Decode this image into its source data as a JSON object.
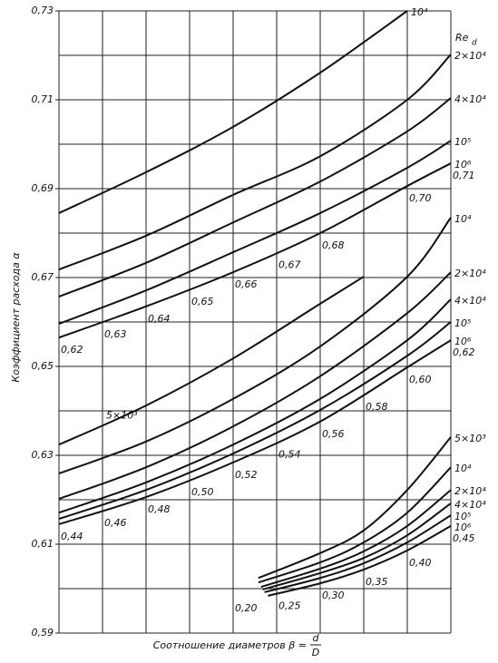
{
  "chart_data": {
    "type": "line",
    "y_label": "Коэффициент расхода α",
    "x_label": "Соотношение диаметров β =",
    "x_label_numerator": "d",
    "x_label_denominator": "D",
    "legend_title": "Re",
    "legend_title_sub": "d",
    "ylim": [
      0.59,
      0.73
    ],
    "yticks": [
      {
        "value": 0.73,
        "label": "0,73"
      },
      {
        "value": 0.71,
        "label": "0,71"
      },
      {
        "value": 0.69,
        "label": "0,69"
      },
      {
        "value": 0.67,
        "label": "0,67"
      },
      {
        "value": 0.65,
        "label": "0,65"
      },
      {
        "value": 0.63,
        "label": "0,63"
      },
      {
        "value": 0.61,
        "label": "0,61"
      },
      {
        "value": 0.59,
        "label": "0,59"
      }
    ],
    "minor_yticks": [
      0.72,
      0.7,
      0.68,
      0.66,
      0.64,
      0.62,
      0.6
    ],
    "grid": true,
    "color": "#111111",
    "groups": [
      {
        "xlim": [
          0.62,
          0.71
        ],
        "xticks": [
          {
            "value": 0.62,
            "label": "0,62"
          },
          {
            "value": 0.63,
            "label": "0,63"
          },
          {
            "value": 0.64,
            "label": "0,64"
          },
          {
            "value": 0.65,
            "label": "0,65"
          },
          {
            "value": 0.66,
            "label": "0,66"
          },
          {
            "value": 0.67,
            "label": "0,67"
          },
          {
            "value": 0.68,
            "label": "0,68"
          },
          {
            "value": 0.7,
            "label": "0,70"
          },
          {
            "value": 0.71,
            "label": "0,71"
          }
        ],
        "series": [
          {
            "name": "10⁴",
            "x": [
              0.62,
              0.64,
              0.66,
              0.68,
              0.7
            ],
            "values": [
              0.6845,
              0.6937,
              0.7039,
              0.7161,
              0.73
            ]
          },
          {
            "name": "2×10⁴",
            "x": [
              0.62,
              0.64,
              0.66,
              0.68,
              0.7,
              0.71
            ],
            "values": [
              0.6718,
              0.6794,
              0.6886,
              0.6973,
              0.71,
              0.7202
            ]
          },
          {
            "name": "4×10⁴",
            "x": [
              0.62,
              0.64,
              0.66,
              0.68,
              0.7,
              0.71
            ],
            "values": [
              0.6657,
              0.6733,
              0.6824,
              0.6916,
              0.7029,
              0.7104
            ]
          },
          {
            "name": "10⁵",
            "x": [
              0.62,
              0.64,
              0.66,
              0.68,
              0.7,
              0.71
            ],
            "values": [
              0.6596,
              0.6671,
              0.6757,
              0.6845,
              0.6947,
              0.7008
            ]
          },
          {
            "name": "10⁶",
            "x": [
              0.62,
              0.64,
              0.66,
              0.68,
              0.7,
              0.71
            ],
            "values": [
              0.6565,
              0.6635,
              0.6712,
              0.68,
              0.6906,
              0.6957
            ]
          }
        ]
      },
      {
        "xlim": [
          0.44,
          0.62
        ],
        "xticks": [
          {
            "value": 0.44,
            "label": "0,44"
          },
          {
            "value": 0.46,
            "label": "0,46"
          },
          {
            "value": 0.48,
            "label": "0,48"
          },
          {
            "value": 0.5,
            "label": "0,50"
          },
          {
            "value": 0.52,
            "label": "0,52"
          },
          {
            "value": 0.54,
            "label": "0,54"
          },
          {
            "value": 0.56,
            "label": "0,56"
          },
          {
            "value": 0.58,
            "label": "0,58"
          },
          {
            "value": 0.6,
            "label": "0,60"
          },
          {
            "value": 0.62,
            "label": "0,62"
          }
        ],
        "series": [
          {
            "name": "5×10³",
            "label_position": "start",
            "x": [
              0.44,
              0.48,
              0.52,
              0.56,
              0.58
            ],
            "values": [
              0.6324,
              0.6412,
              0.6518,
              0.6641,
              0.6702
            ]
          },
          {
            "name": "10⁴",
            "x": [
              0.44,
              0.48,
              0.52,
              0.56,
              0.6,
              0.62
            ],
            "values": [
              0.6259,
              0.6331,
              0.6427,
              0.6545,
              0.6702,
              0.6835
            ]
          },
          {
            "name": "2×10⁴",
            "x": [
              0.44,
              0.48,
              0.52,
              0.56,
              0.6,
              0.62
            ],
            "values": [
              0.6202,
              0.6273,
              0.6365,
              0.6478,
              0.662,
              0.6712
            ]
          },
          {
            "name": "4×10⁴",
            "x": [
              0.44,
              0.48,
              0.52,
              0.56,
              0.6,
              0.62
            ],
            "values": [
              0.6171,
              0.6239,
              0.6324,
              0.6427,
              0.6559,
              0.6651
            ]
          },
          {
            "name": "10⁵",
            "x": [
              0.44,
              0.48,
              0.52,
              0.56,
              0.6,
              0.62
            ],
            "values": [
              0.6157,
              0.6222,
              0.6304,
              0.6402,
              0.6524,
              0.66
            ]
          },
          {
            "name": "10⁶",
            "x": [
              0.44,
              0.48,
              0.52,
              0.56,
              0.6,
              0.62
            ],
            "values": [
              0.6145,
              0.6206,
              0.6284,
              0.6376,
              0.6498,
              0.6559
            ]
          }
        ]
      },
      {
        "xlim": [
          0.0,
          0.45
        ],
        "xticks": [
          {
            "value": 0.2,
            "label": "0,20"
          },
          {
            "value": 0.25,
            "label": "0,25"
          },
          {
            "value": 0.3,
            "label": "0,30"
          },
          {
            "value": 0.35,
            "label": "0,35"
          },
          {
            "value": 0.4,
            "label": "0,40"
          },
          {
            "value": 0.45,
            "label": "0,45"
          }
        ],
        "series": [
          {
            "name": "5×10³",
            "x": [
              0.229,
              0.3,
              0.35,
              0.4,
              0.45
            ],
            "values": [
              0.6024,
              0.608,
              0.6131,
              0.6222,
              0.6341
            ]
          },
          {
            "name": "10⁴",
            "x": [
              0.229,
              0.3,
              0.35,
              0.4,
              0.45
            ],
            "values": [
              0.6014,
              0.6059,
              0.6104,
              0.6171,
              0.6273
            ]
          },
          {
            "name": "2×10⁴",
            "x": [
              0.232,
              0.3,
              0.35,
              0.4,
              0.45
            ],
            "values": [
              0.6004,
              0.6045,
              0.6084,
              0.6141,
              0.6222
            ]
          },
          {
            "name": "4×10⁴",
            "x": [
              0.234,
              0.3,
              0.35,
              0.4,
              0.45
            ],
            "values": [
              0.5998,
              0.6035,
              0.6069,
              0.612,
              0.6192
            ]
          },
          {
            "name": "10⁵",
            "x": [
              0.236,
              0.3,
              0.35,
              0.4,
              0.45
            ],
            "values": [
              0.5992,
              0.6024,
              0.6057,
              0.6104,
              0.6165
            ]
          },
          {
            "name": "10⁶",
            "x": [
              0.24,
              0.3,
              0.35,
              0.4,
              0.45
            ],
            "values": [
              0.5984,
              0.6012,
              0.6043,
              0.6086,
              0.6141
            ]
          }
        ]
      }
    ]
  }
}
